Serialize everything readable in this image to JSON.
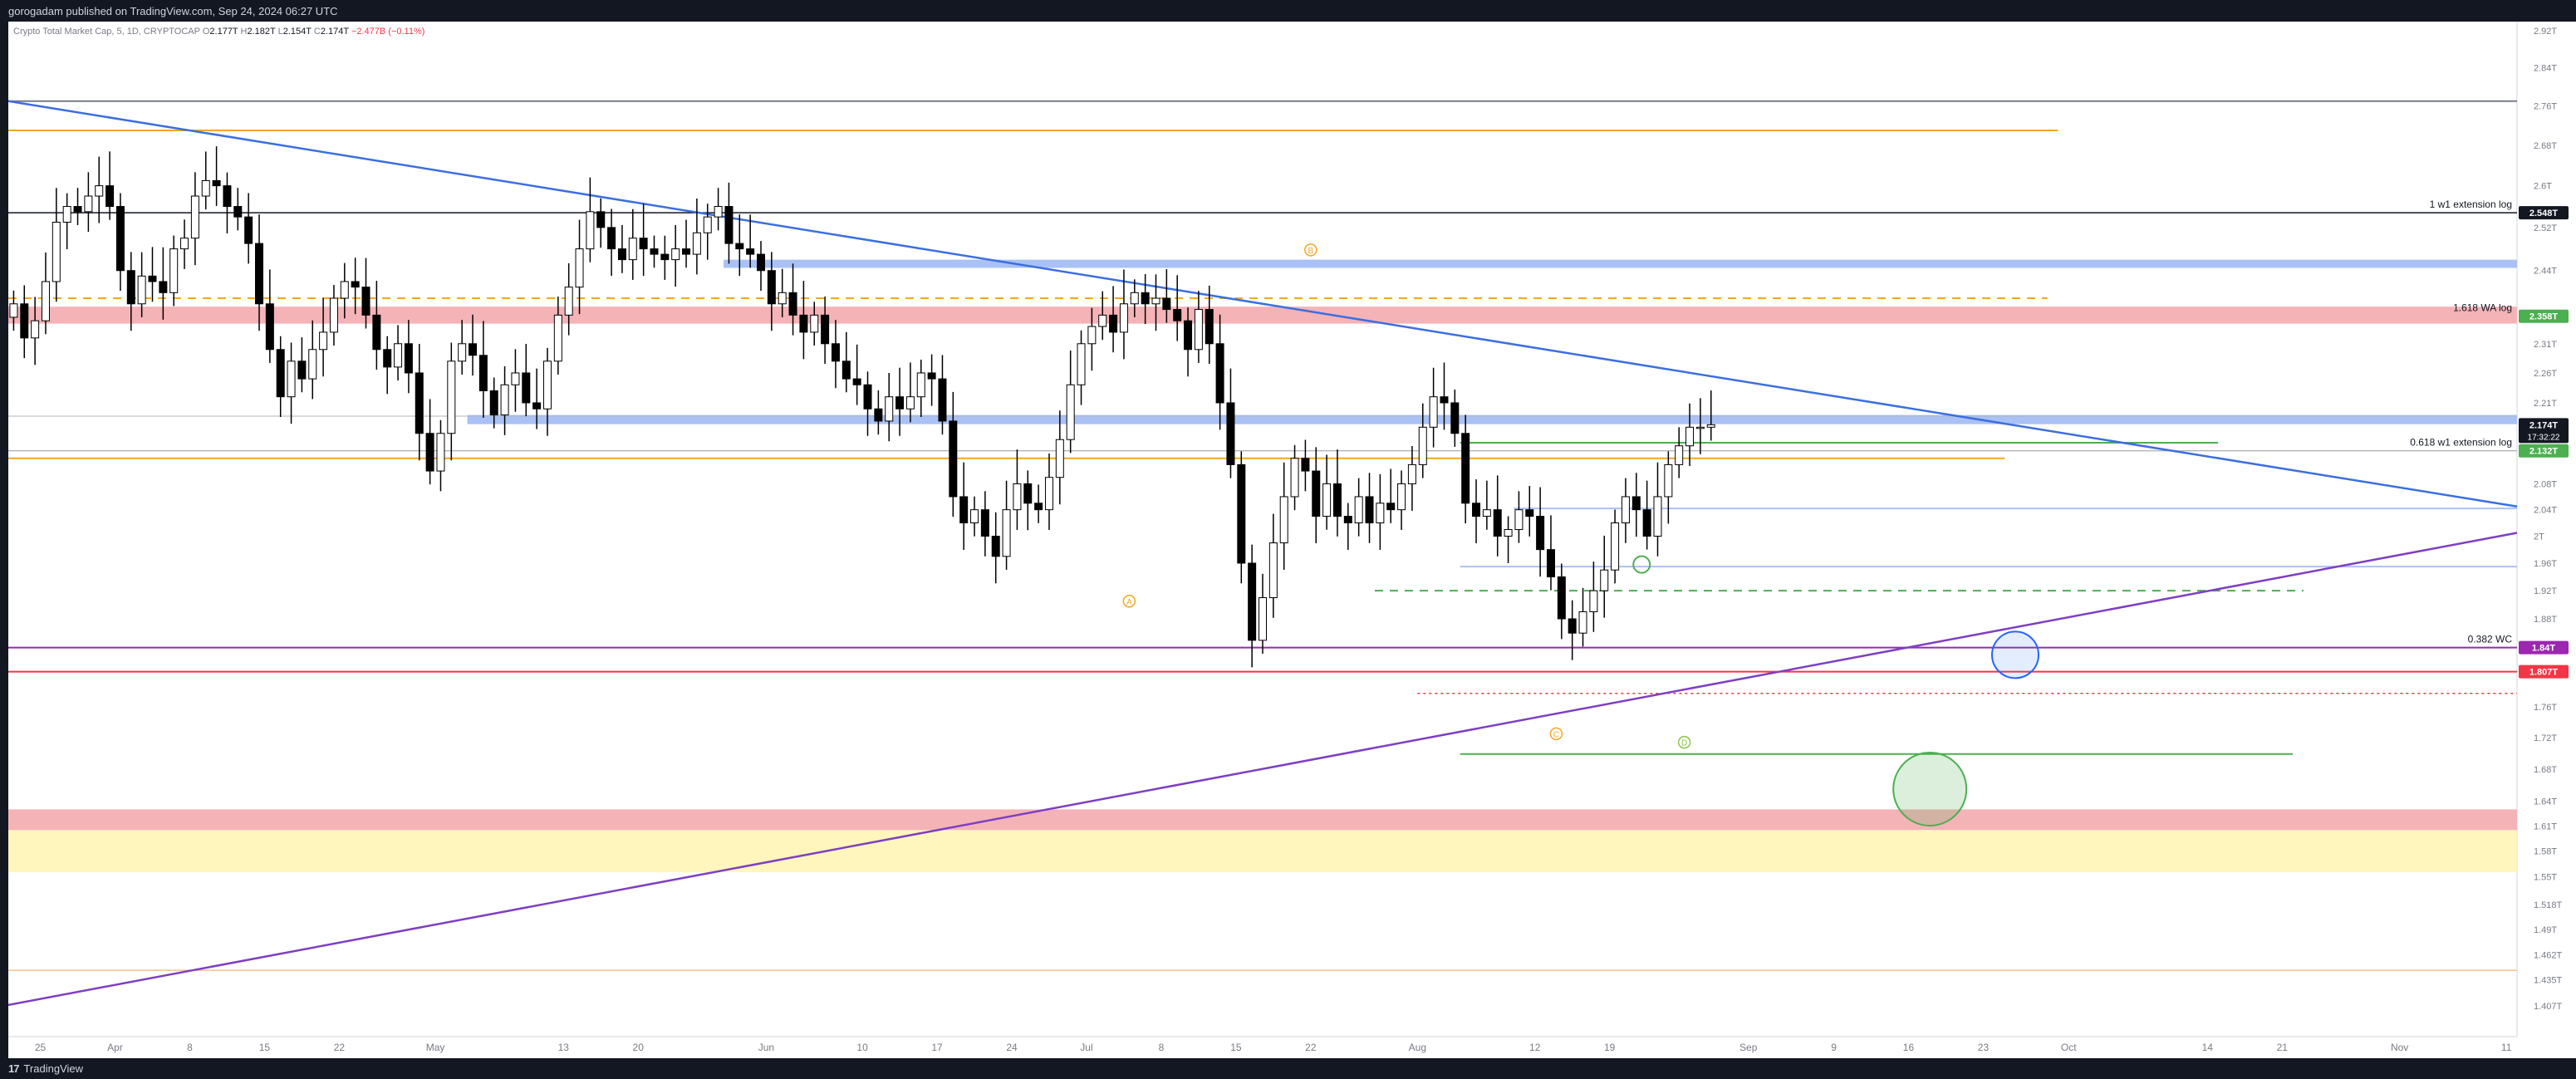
{
  "header": {
    "text": "gorogadam published on TradingView.com, Sep 24, 2024 06:27 UTC"
  },
  "footer": {
    "brand": "TradingView"
  },
  "legend": {
    "symbol": "Crypto Total Market Cap, 5, 1D, CRYPTOCAP",
    "o_label": "O",
    "o": "2.177T",
    "h_label": "H",
    "h": "2.182T",
    "l_label": "L",
    "l": "2.154T",
    "c_label": "C",
    "c": "2.174T",
    "change": "−2.477B (−0.11%)"
  },
  "chart_data": {
    "type": "candlestick",
    "title": "",
    "price_axis": {
      "range": [
        1.375,
        2.94
      ],
      "ticks": [
        "2.92T",
        "2.84T",
        "2.76T",
        "2.68T",
        "2.6T",
        "2.52T",
        "2.44T",
        "2.31T",
        "2.26T",
        "2.21T",
        "2.08T",
        "2.04T",
        "2T",
        "1.96T",
        "1.92T",
        "1.88T",
        "1.76T",
        "1.72T",
        "1.68T",
        "1.64T",
        "1.61T",
        "1.58T",
        "1.55T",
        "1.518T",
        "1.49T",
        "1.462T",
        "1.435T",
        "1.407T"
      ]
    },
    "time_axis": {
      "start": "2024-03-22",
      "end": "2024-11-12",
      "ticks": [
        {
          "label": "25",
          "date": "2024-03-25"
        },
        {
          "label": "Apr",
          "date": "2024-04-01"
        },
        {
          "label": "8",
          "date": "2024-04-08"
        },
        {
          "label": "15",
          "date": "2024-04-15"
        },
        {
          "label": "22",
          "date": "2024-04-22"
        },
        {
          "label": "May",
          "date": "2024-05-01"
        },
        {
          "label": "13",
          "date": "2024-05-13"
        },
        {
          "label": "20",
          "date": "2024-05-20"
        },
        {
          "label": "Jun",
          "date": "2024-06-01"
        },
        {
          "label": "10",
          "date": "2024-06-10"
        },
        {
          "label": "17",
          "date": "2024-06-17"
        },
        {
          "label": "24",
          "date": "2024-06-24"
        },
        {
          "label": "Jul",
          "date": "2024-07-01"
        },
        {
          "label": "8",
          "date": "2024-07-08"
        },
        {
          "label": "15",
          "date": "2024-07-15"
        },
        {
          "label": "22",
          "date": "2024-07-22"
        },
        {
          "label": "Aug",
          "date": "2024-08-01"
        },
        {
          "label": "12",
          "date": "2024-08-12"
        },
        {
          "label": "19",
          "date": "2024-08-19"
        },
        {
          "label": "Sep",
          "date": "2024-09-01"
        },
        {
          "label": "9",
          "date": "2024-09-09"
        },
        {
          "label": "16",
          "date": "2024-09-16"
        },
        {
          "label": "23",
          "date": "2024-09-23"
        },
        {
          "label": "Oct",
          "date": "2024-10-01"
        },
        {
          "label": "14",
          "date": "2024-10-14"
        },
        {
          "label": "21",
          "date": "2024-10-21"
        },
        {
          "label": "Nov",
          "date": "2024-11-01"
        },
        {
          "label": "11",
          "date": "2024-11-11"
        }
      ]
    },
    "candles": {
      "start_date": "2024-03-22",
      "interval": "1D",
      "close": [
        2.38,
        2.32,
        2.35,
        2.42,
        2.53,
        2.56,
        2.55,
        2.58,
        2.6,
        2.56,
        2.44,
        2.38,
        2.43,
        2.42,
        2.4,
        2.48,
        2.5,
        2.58,
        2.61,
        2.6,
        2.56,
        2.54,
        2.49,
        2.38,
        2.3,
        2.22,
        2.28,
        2.25,
        2.3,
        2.33,
        2.39,
        2.42,
        2.41,
        2.36,
        2.3,
        2.27,
        2.31,
        2.26,
        2.16,
        2.1,
        2.16,
        2.28,
        2.31,
        2.29,
        2.23,
        2.19,
        2.24,
        2.26,
        2.21,
        2.2,
        2.28,
        2.36,
        2.41,
        2.48,
        2.55,
        2.52,
        2.48,
        2.46,
        2.5,
        2.48,
        2.47,
        2.46,
        2.48,
        2.47,
        2.51,
        2.54,
        2.56,
        2.49,
        2.48,
        2.47,
        2.44,
        2.38,
        2.4,
        2.36,
        2.33,
        2.36,
        2.31,
        2.28,
        2.25,
        2.24,
        2.2,
        2.18,
        2.22,
        2.2,
        2.22,
        2.26,
        2.25,
        2.18,
        2.06,
        2.02,
        2.04,
        2.0,
        1.97,
        2.04,
        2.08,
        2.05,
        2.04,
        2.09,
        2.15,
        2.24,
        2.31,
        2.34,
        2.36,
        2.33,
        2.38,
        2.4,
        2.38,
        2.39,
        2.37,
        2.35,
        2.3,
        2.37,
        2.31,
        2.21,
        2.11,
        1.96,
        1.85,
        1.91,
        1.99,
        2.06,
        2.12,
        2.1,
        2.03,
        2.08,
        2.03,
        2.02,
        2.06,
        2.02,
        2.05,
        2.04,
        2.08,
        2.11,
        2.17,
        2.22,
        2.21,
        2.16,
        2.05,
        2.03,
        2.04,
        2.0,
        2.01,
        2.04,
        2.03,
        1.98,
        1.94,
        1.88,
        1.86,
        1.89,
        1.92,
        1.95,
        2.02,
        2.06,
        2.04,
        2.0,
        2.06,
        2.11,
        2.14,
        2.17,
        2.17,
        2.174
      ]
    },
    "annotations": {
      "points": [
        {
          "label": "A",
          "date": "2024-07-05",
          "price": 1.905
        },
        {
          "label": "B",
          "date": "2024-07-22",
          "price": 2.478
        },
        {
          "label": "C",
          "date": "2024-08-14",
          "price": 1.725
        },
        {
          "label": "D",
          "date": "2024-08-26",
          "price": 1.714
        }
      ],
      "levels": [
        {
          "label": "1 w1 extension log",
          "price": 2.548,
          "tag": "2.548T",
          "color": "#131722"
        },
        {
          "label": "1.618 WA log",
          "price": 2.358,
          "tag": "2.358T",
          "color": "#4caf50"
        },
        {
          "label": "",
          "price": 2.174,
          "tag": "2.174T",
          "color": "#131722",
          "subtag": "17:32:22"
        },
        {
          "label": "0.618 w1 extension log",
          "price": 2.132,
          "tag": "2.132T",
          "color": "#4caf50"
        },
        {
          "label": "0.382 WC",
          "price": 1.84,
          "tag": "1.84T",
          "color": "#9c27b0"
        },
        {
          "label": "",
          "price": 1.807,
          "tag": "1.807T",
          "color": "#f23645"
        }
      ]
    },
    "colors": {
      "up": "#ffffff",
      "down": "#000000",
      "wick": "#000000",
      "trend_down": "#3b6fe0",
      "trend_up": "#7e3fc4",
      "orange": "#f5a623",
      "green": "#4caf50",
      "red": "#f23645",
      "purple": "#9c27b0",
      "blue_zone": "#a9c1f5",
      "red_zone": "#f4b3b7",
      "yellow_zone": "#fff6bd"
    }
  }
}
